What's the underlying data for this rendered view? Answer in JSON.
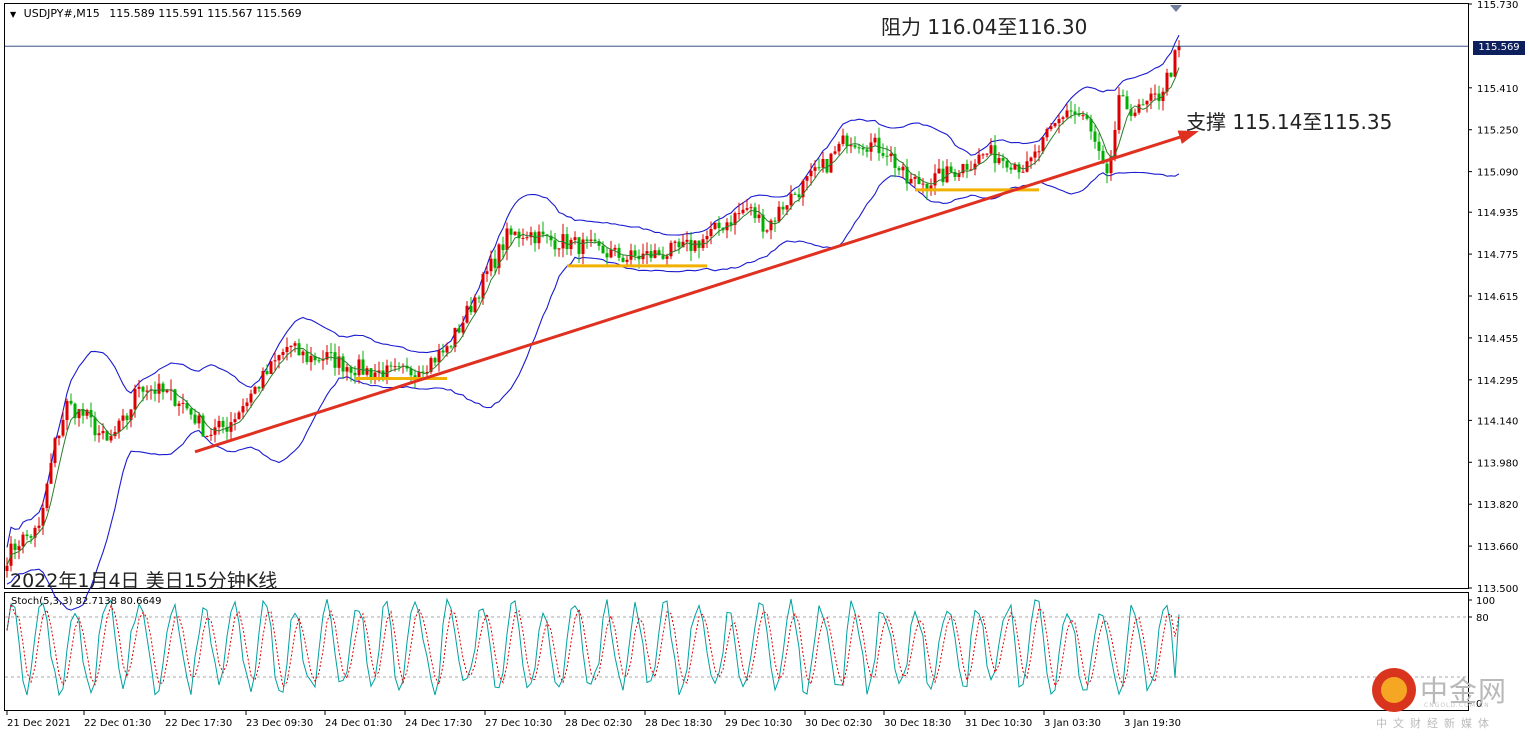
{
  "header": {
    "symbol": "USDJPY#,M15",
    "ohlc": "115.589 115.591 115.567 115.569"
  },
  "caption": "2022年1月4日 美日15分钟K线",
  "annotations": {
    "resistance": "阻力 116.04至116.30",
    "support": "支撑 115.14至115.35"
  },
  "current_price_label": "115.569",
  "stoch_label": "Stoch(5,3,3) 82.7138 80.6649",
  "logo": {
    "name": "中金网",
    "domain": "CNGOLD.COM.CN",
    "tagline": "中文财经新媒体"
  },
  "colors": {
    "frame": "#000000",
    "bollinger": "#1b1bd0",
    "candle_up": "#dd0000",
    "candle_down": "#00b000",
    "ma": "#2a7d2a",
    "trendline": "#e03020",
    "support_segment": "#f2b000",
    "current_line": "#1a3a7a",
    "stoch_main": "#00a0a0",
    "stoch_signal": "#dd0000"
  },
  "chart_data": [
    {
      "type": "candlestick",
      "title": "",
      "ylim": [
        113.5,
        115.73
      ],
      "y_ticks": [
        "115.730",
        "115.569",
        "115.410",
        "115.250",
        "115.090",
        "114.935",
        "114.775",
        "114.615",
        "114.455",
        "114.295",
        "114.140",
        "113.980",
        "113.820",
        "113.660",
        "113.500"
      ],
      "x_ticks": [
        "21 Dec 2021",
        "22 Dec 01:30",
        "22 Dec 17:30",
        "23 Dec 09:30",
        "24 Dec 01:30",
        "24 Dec 17:30",
        "27 Dec 10:30",
        "28 Dec 02:30",
        "28 Dec 18:30",
        "29 Dec 10:30",
        "30 Dec 02:30",
        "30 Dec 18:30",
        "31 Dec 10:30",
        "3 Jan 03:30",
        "3 Jan 19:30"
      ],
      "x_range": [
        0,
        293
      ],
      "current_price": 115.569,
      "path_anchors": [
        [
          0,
          113.62
        ],
        [
          3,
          113.68
        ],
        [
          8,
          113.72
        ],
        [
          12,
          114.05
        ],
        [
          15,
          114.2
        ],
        [
          20,
          114.15
        ],
        [
          25,
          114.05
        ],
        [
          30,
          114.15
        ],
        [
          33,
          114.28
        ],
        [
          38,
          114.25
        ],
        [
          43,
          114.22
        ],
        [
          47,
          114.15
        ],
        [
          50,
          114.09
        ],
        [
          55,
          114.12
        ],
        [
          60,
          114.22
        ],
        [
          65,
          114.32
        ],
        [
          70,
          114.42
        ],
        [
          75,
          114.38
        ],
        [
          80,
          114.38
        ],
        [
          85,
          114.35
        ],
        [
          90,
          114.33
        ],
        [
          95,
          114.32
        ],
        [
          100,
          114.32
        ],
        [
          105,
          114.36
        ],
        [
          110,
          114.41
        ],
        [
          115,
          114.55
        ],
        [
          120,
          114.7
        ],
        [
          125,
          114.84
        ],
        [
          130,
          114.86
        ],
        [
          135,
          114.83
        ],
        [
          140,
          114.82
        ],
        [
          145,
          114.8
        ],
        [
          150,
          114.78
        ],
        [
          155,
          114.76
        ],
        [
          160,
          114.77
        ],
        [
          165,
          114.78
        ],
        [
          170,
          114.8
        ],
        [
          175,
          114.84
        ],
        [
          180,
          114.9
        ],
        [
          185,
          114.95
        ],
        [
          190,
          114.88
        ],
        [
          195,
          114.98
        ],
        [
          200,
          115.05
        ],
        [
          205,
          115.12
        ],
        [
          210,
          115.22
        ],
        [
          215,
          115.2
        ],
        [
          220,
          115.17
        ],
        [
          225,
          115.05
        ],
        [
          230,
          115.05
        ],
        [
          235,
          115.08
        ],
        [
          240,
          115.12
        ],
        [
          245,
          115.16
        ],
        [
          250,
          115.14
        ],
        [
          255,
          115.1
        ],
        [
          260,
          115.22
        ],
        [
          265,
          115.33
        ],
        [
          270,
          115.28
        ],
        [
          275,
          115.05
        ],
        [
          278,
          115.35
        ],
        [
          283,
          115.32
        ],
        [
          288,
          115.38
        ],
        [
          291,
          115.48
        ],
        [
          293,
          115.569
        ]
      ],
      "bollinger": {
        "period": 20,
        "deviation": 2
      },
      "trendline": {
        "from": [
          47,
          114.02
        ],
        "to": [
          297,
          115.24
        ]
      },
      "support_segments": [
        {
          "from": [
            87,
            114.3
          ],
          "to": [
            110,
            114.3
          ],
          "level": 114.3
        },
        {
          "from": [
            140,
            114.73
          ],
          "to": [
            175,
            114.73
          ],
          "level": 114.73
        },
        {
          "from": [
            227,
            115.02
          ],
          "to": [
            258,
            115.02
          ],
          "level": 115.02
        }
      ]
    },
    {
      "type": "line",
      "title": "",
      "series": [
        {
          "name": "Stoch(5,3,3)",
          "value": 82.7138
        },
        {
          "name": "",
          "value": 80.6649
        }
      ],
      "ylim": [
        0,
        100
      ],
      "y_ticks": [
        "100",
        "80",
        "0"
      ],
      "levels": [
        80,
        20
      ]
    }
  ]
}
